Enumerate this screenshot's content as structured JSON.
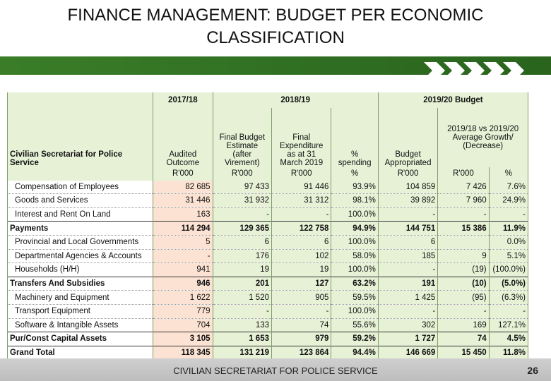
{
  "title": {
    "line1": "FINANCE MANAGEMENT: BUDGET PER ECONOMIC",
    "line2": "CLASSIFICATION"
  },
  "footer": {
    "text": "CIVILIAN SECRETARIAT FOR POLICE SERVICE",
    "page": "26"
  },
  "table": {
    "year_headers": {
      "y1": "2017/18",
      "y2": "2018/19",
      "y3": "2019/20 Budget"
    },
    "col_headers": {
      "label": [
        "Civilian Secretariat for Police",
        "Service"
      ],
      "audited": [
        "Audited",
        "Outcome"
      ],
      "final_budget": [
        "Final Budget",
        "Estimate",
        "(after",
        "Virement)"
      ],
      "final_exp": [
        "Final",
        "Expenditure",
        "as at 31",
        "March 2019"
      ],
      "pct": [
        "%",
        "spending"
      ],
      "budget": [
        "Budget",
        "Appropriated"
      ],
      "growth": [
        "2019/18 vs 2019/20",
        "Average Growth/",
        "(Decrease)"
      ]
    },
    "units": [
      "R'000",
      "R'000",
      "R'000",
      "%",
      "R'000",
      "R'000",
      "%"
    ],
    "rows": [
      {
        "label": "Compensation of Employees",
        "v": [
          "82 685",
          "97 433",
          "91 446",
          "93.9%",
          "104 859",
          "7 426",
          "7.6%"
        ],
        "type": "item"
      },
      {
        "label": "Goods and Services",
        "v": [
          "31 446",
          "31 932",
          "31 312",
          "98.1%",
          "39 892",
          "7 960",
          "24.9%"
        ],
        "type": "item"
      },
      {
        "label": "Interest and Rent On Land",
        "v": [
          "163",
          "-",
          "-",
          "100.0%",
          "-",
          "-",
          "-"
        ],
        "type": "item"
      },
      {
        "label": "Payments",
        "v": [
          "114 294",
          "129 365",
          "122 758",
          "94.9%",
          "144 751",
          "15 386",
          "11.9%"
        ],
        "type": "total"
      },
      {
        "label": "Provincial and Local Governments",
        "v": [
          "5",
          "6",
          "6",
          "100.0%",
          "6",
          "",
          "0.0%"
        ],
        "type": "item"
      },
      {
        "label": "Departmental Agencies & Accounts",
        "v": [
          "-",
          "176",
          "102",
          "58.0%",
          "185",
          "9",
          "5.1%"
        ],
        "type": "item"
      },
      {
        "label": "Households (H/H)",
        "v": [
          "941",
          "19",
          "19",
          "100.0%",
          "-",
          "(19)",
          "(100.0%)"
        ],
        "type": "item"
      },
      {
        "label": "Transfers And Subsidies",
        "v": [
          "946",
          "201",
          "127",
          "63.2%",
          "191",
          "(10)",
          "(5.0%)"
        ],
        "type": "total"
      },
      {
        "label": "Machinery and Equipment",
        "v": [
          "1 622",
          "1 520",
          "905",
          "59.5%",
          "1 425",
          "(95)",
          "(6.3%)"
        ],
        "type": "item"
      },
      {
        "label": "Transport Equipment",
        "v": [
          "779",
          "-",
          "-",
          "100.0%",
          "-",
          "-",
          "-"
        ],
        "type": "item"
      },
      {
        "label": "Software & Intangible Assets",
        "v": [
          "704",
          "133",
          "74",
          "55.6%",
          "302",
          "169",
          "127.1%"
        ],
        "type": "item"
      },
      {
        "label": "Pur/Const Capital Assets",
        "v": [
          "3 105",
          "1 653",
          "979",
          "59.2%",
          "1 727",
          "74",
          "4.5%"
        ],
        "type": "total"
      },
      {
        "label": "Grand Total",
        "v": [
          "118 345",
          "131 219",
          "123 864",
          "94.4%",
          "146 669",
          "15 450",
          "11.8%"
        ],
        "type": "grand"
      }
    ]
  },
  "colors": {
    "green_bar": "#2f6e22",
    "header_green": "#e6f1d6",
    "highlight_orange": "#fbe2d3"
  }
}
